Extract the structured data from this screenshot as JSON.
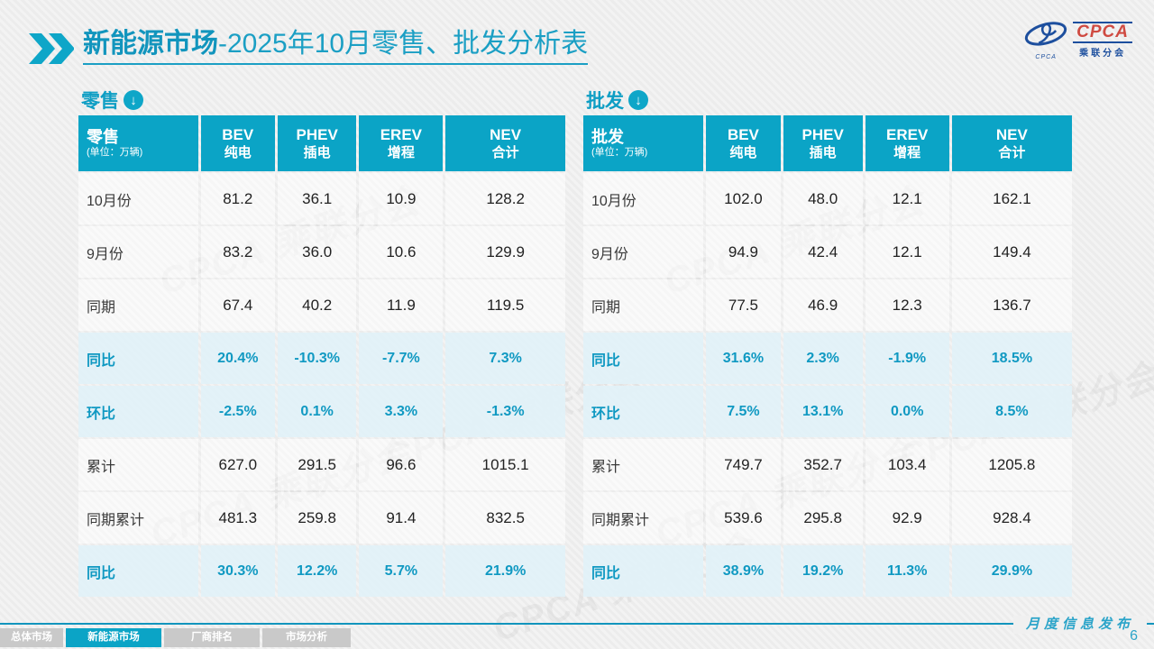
{
  "title": {
    "highlight": "新能源市场",
    "rest": "-2025年10月零售、批发分析表"
  },
  "logo": {
    "name": "CPCA",
    "subtitle": "乘联分会",
    "mark_caption": "CPCA"
  },
  "watermark": "CPCA 乘联分会",
  "tables": [
    {
      "section_label": "零售",
      "header": {
        "label": "零售",
        "unit": "(单位：万辆)",
        "columns": [
          {
            "en": "BEV",
            "cn": "纯电"
          },
          {
            "en": "PHEV",
            "cn": "插电"
          },
          {
            "en": "EREV",
            "cn": "增程"
          },
          {
            "en": "NEV",
            "cn": "合计"
          }
        ]
      },
      "rows": [
        {
          "label": "10月份",
          "type": "data",
          "values": [
            "81.2",
            "36.1",
            "10.9",
            "128.2"
          ]
        },
        {
          "label": "9月份",
          "type": "data",
          "values": [
            "83.2",
            "36.0",
            "10.6",
            "129.9"
          ]
        },
        {
          "label": "同期",
          "type": "data",
          "values": [
            "67.4",
            "40.2",
            "11.9",
            "119.5"
          ]
        },
        {
          "label": "同比",
          "type": "pct",
          "values": [
            "20.4%",
            "-10.3%",
            "-7.7%",
            "7.3%"
          ]
        },
        {
          "label": "环比",
          "type": "pct",
          "values": [
            "-2.5%",
            "0.1%",
            "3.3%",
            "-1.3%"
          ]
        },
        {
          "label": "累计",
          "type": "data",
          "values": [
            "627.0",
            "291.5",
            "96.6",
            "1015.1"
          ]
        },
        {
          "label": "同期累计",
          "type": "data",
          "values": [
            "481.3",
            "259.8",
            "91.4",
            "832.5"
          ]
        },
        {
          "label": "同比",
          "type": "pct",
          "values": [
            "30.3%",
            "12.2%",
            "5.7%",
            "21.9%"
          ]
        }
      ]
    },
    {
      "section_label": "批发",
      "header": {
        "label": "批发",
        "unit": "(单位：万辆)",
        "columns": [
          {
            "en": "BEV",
            "cn": "纯电"
          },
          {
            "en": "PHEV",
            "cn": "插电"
          },
          {
            "en": "EREV",
            "cn": "增程"
          },
          {
            "en": "NEV",
            "cn": "合计"
          }
        ]
      },
      "rows": [
        {
          "label": "10月份",
          "type": "data",
          "values": [
            "102.0",
            "48.0",
            "12.1",
            "162.1"
          ]
        },
        {
          "label": "9月份",
          "type": "data",
          "values": [
            "94.9",
            "42.4",
            "12.1",
            "149.4"
          ]
        },
        {
          "label": "同期",
          "type": "data",
          "values": [
            "77.5",
            "46.9",
            "12.3",
            "136.7"
          ]
        },
        {
          "label": "同比",
          "type": "pct",
          "values": [
            "31.6%",
            "2.3%",
            "-1.9%",
            "18.5%"
          ]
        },
        {
          "label": "环比",
          "type": "pct",
          "values": [
            "7.5%",
            "13.1%",
            "0.0%",
            "8.5%"
          ]
        },
        {
          "label": "累计",
          "type": "data",
          "values": [
            "749.7",
            "352.7",
            "103.4",
            "1205.8"
          ]
        },
        {
          "label": "同期累计",
          "type": "data",
          "values": [
            "539.6",
            "295.8",
            "92.9",
            "928.4"
          ]
        },
        {
          "label": "同比",
          "type": "pct",
          "values": [
            "38.9%",
            "19.2%",
            "11.3%",
            "29.9%"
          ]
        }
      ]
    }
  ],
  "footer": {
    "tabs": [
      {
        "label": "总体市场",
        "active": false
      },
      {
        "label": "新能源市场",
        "active": true
      },
      {
        "label": "厂商排名",
        "active": false
      },
      {
        "label": "市场分析",
        "active": false
      }
    ],
    "publish_label": "月度信息发布",
    "page_number": "6"
  },
  "colors": {
    "accent_teal": "#0ba4c6",
    "title_teal": "#1b9fc4",
    "pct_row_bg": "#e2f1f8",
    "logo_blue": "#1d4f9e",
    "logo_red": "#cf4a41",
    "inactive_tab_gray": "#c9c9c9"
  }
}
